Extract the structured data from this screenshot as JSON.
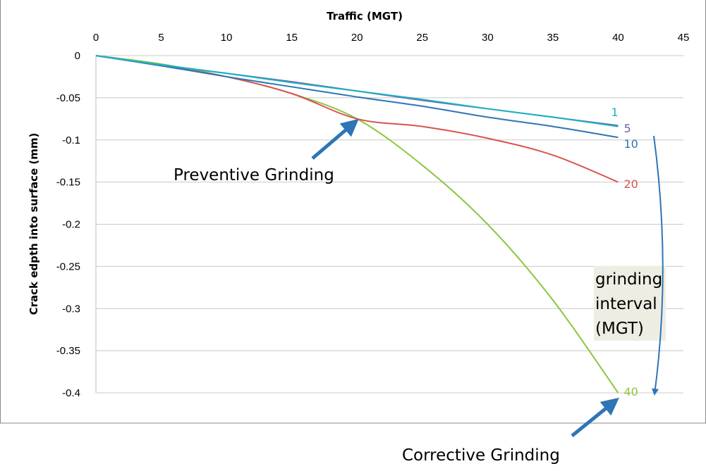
{
  "chart_data": {
    "type": "line",
    "title": "",
    "xlabel": "Traffic (MGT)",
    "ylabel": "Crack edpth into surface (mm)",
    "xlim": [
      0,
      45
    ],
    "ylim": [
      -0.4,
      0
    ],
    "x_ticks": [
      0,
      5,
      10,
      15,
      20,
      25,
      30,
      35,
      40,
      45
    ],
    "y_ticks": [
      0,
      -0.05,
      -0.1,
      -0.15,
      -0.2,
      -0.25,
      -0.3,
      -0.35,
      -0.4
    ],
    "x_tick_labels": [
      "0",
      "5",
      "10",
      "15",
      "20",
      "25",
      "30",
      "35",
      "40",
      "45"
    ],
    "y_tick_labels": [
      "0",
      "-0.05",
      "-0.1",
      "-0.15",
      "-0.2",
      "-0.25",
      "-0.3",
      "-0.35",
      "-0.4"
    ],
    "grid": "horizontal",
    "x_axis_position": "top",
    "series": [
      {
        "name": "1",
        "label": "1",
        "color": "#17b3c4",
        "points": [
          [
            0,
            0
          ],
          [
            5,
            -0.011
          ],
          [
            10,
            -0.021
          ],
          [
            15,
            -0.032
          ],
          [
            20,
            -0.042
          ],
          [
            25,
            -0.052
          ],
          [
            30,
            -0.063
          ],
          [
            35,
            -0.073
          ],
          [
            40,
            -0.084
          ]
        ]
      },
      {
        "name": "5",
        "label": "5",
        "color": "#7b5aa6",
        "points": [
          [
            0,
            0
          ],
          [
            5,
            -0.011
          ],
          [
            10,
            -0.021
          ],
          [
            15,
            -0.031
          ],
          [
            20,
            -0.042
          ],
          [
            25,
            -0.053
          ],
          [
            30,
            -0.063
          ],
          [
            35,
            -0.073
          ],
          [
            40,
            -0.083
          ]
        ]
      },
      {
        "name": "10",
        "label": "10",
        "color": "#2e75b6",
        "points": [
          [
            0,
            0
          ],
          [
            5,
            -0.012
          ],
          [
            10,
            -0.025
          ],
          [
            15,
            -0.037
          ],
          [
            20,
            -0.049
          ],
          [
            25,
            -0.06
          ],
          [
            30,
            -0.073
          ],
          [
            35,
            -0.084
          ],
          [
            40,
            -0.097
          ]
        ]
      },
      {
        "name": "20",
        "label": "20",
        "color": "#d9534f",
        "points": [
          [
            0,
            0
          ],
          [
            5,
            -0.012
          ],
          [
            10,
            -0.025
          ],
          [
            15,
            -0.045
          ],
          [
            20,
            -0.075
          ],
          [
            25,
            -0.084
          ],
          [
            30,
            -0.098
          ],
          [
            35,
            -0.118
          ],
          [
            40,
            -0.15
          ]
        ]
      },
      {
        "name": "40",
        "label": "40",
        "color": "#8dc63f",
        "points": [
          [
            0,
            0
          ],
          [
            5,
            -0.01
          ],
          [
            10,
            -0.025
          ],
          [
            15,
            -0.045
          ],
          [
            20,
            -0.075
          ],
          [
            25,
            -0.13
          ],
          [
            30,
            -0.2
          ],
          [
            35,
            -0.29
          ],
          [
            40,
            -0.4
          ]
        ]
      }
    ],
    "annotations": {
      "preventive": {
        "text": "Preventive Grinding",
        "target": [
          20,
          -0.075
        ]
      },
      "corrective": {
        "text": "Corrective Grinding",
        "target": [
          40,
          -0.4
        ]
      },
      "interval_box_lines": [
        "grinding",
        "interval",
        "(MGT)"
      ]
    }
  }
}
